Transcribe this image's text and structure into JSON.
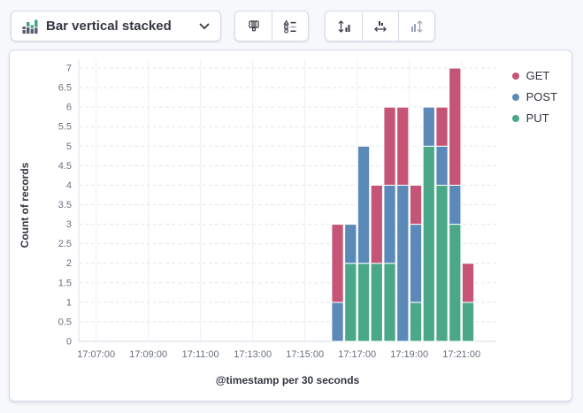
{
  "toolbar": {
    "chart_type_label": "Bar vertical stacked",
    "chart_type_icon": "stacked-bars-icon",
    "chevron_icon": "chevron-down-icon",
    "style_group_icons": [
      "brush-icon",
      "legend-values-icon"
    ],
    "fit_group_icons": [
      "fit-vertical-icon",
      "fit-horizontal-icon",
      "collapse-vertical-icon-disabled"
    ]
  },
  "chart_data": {
    "type": "bar",
    "stacked": true,
    "title": "",
    "xlabel": "@timestamp per 30 seconds",
    "ylabel": "Count of records",
    "ylim": [
      0,
      7
    ],
    "ytick_step": 0.5,
    "yticks": [
      "0",
      "0.5",
      "1",
      "1.5",
      "2",
      "2.5",
      "3",
      "3.5",
      "4",
      "4.5",
      "5",
      "5.5",
      "6",
      "6.5",
      "7"
    ],
    "xticks": [
      "17:07:00",
      "17:09:00",
      "17:11:00",
      "17:13:00",
      "17:15:00",
      "17:17:00",
      "17:19:00",
      "17:21:00"
    ],
    "x_domain": [
      "17:06:20",
      "17:22:20"
    ],
    "x_bucket_seconds": 30,
    "grid": true,
    "legend_position": "top-right",
    "categories": [
      "17:16:00",
      "17:16:30",
      "17:17:00",
      "17:17:30",
      "17:18:00",
      "17:18:30",
      "17:19:00",
      "17:19:30",
      "17:20:00",
      "17:20:30",
      "17:21:00"
    ],
    "series": [
      {
        "name": "GET",
        "color": "#C55577",
        "values": [
          2,
          0,
          0,
          2,
          2,
          2,
          1,
          0,
          1,
          3,
          1
        ]
      },
      {
        "name": "POST",
        "color": "#5B89B8",
        "values": [
          1,
          1,
          3,
          0,
          2,
          4,
          2,
          1,
          1,
          1,
          0
        ]
      },
      {
        "name": "PUT",
        "color": "#4AA889",
        "values": [
          0,
          2,
          2,
          2,
          2,
          0,
          1,
          5,
          4,
          3,
          1
        ]
      }
    ],
    "stack_order_bottom_to_top": [
      "PUT",
      "POST",
      "GET"
    ],
    "totals_per_bucket": [
      3,
      3,
      5,
      4,
      6,
      6,
      4,
      6,
      6,
      7,
      2
    ]
  }
}
